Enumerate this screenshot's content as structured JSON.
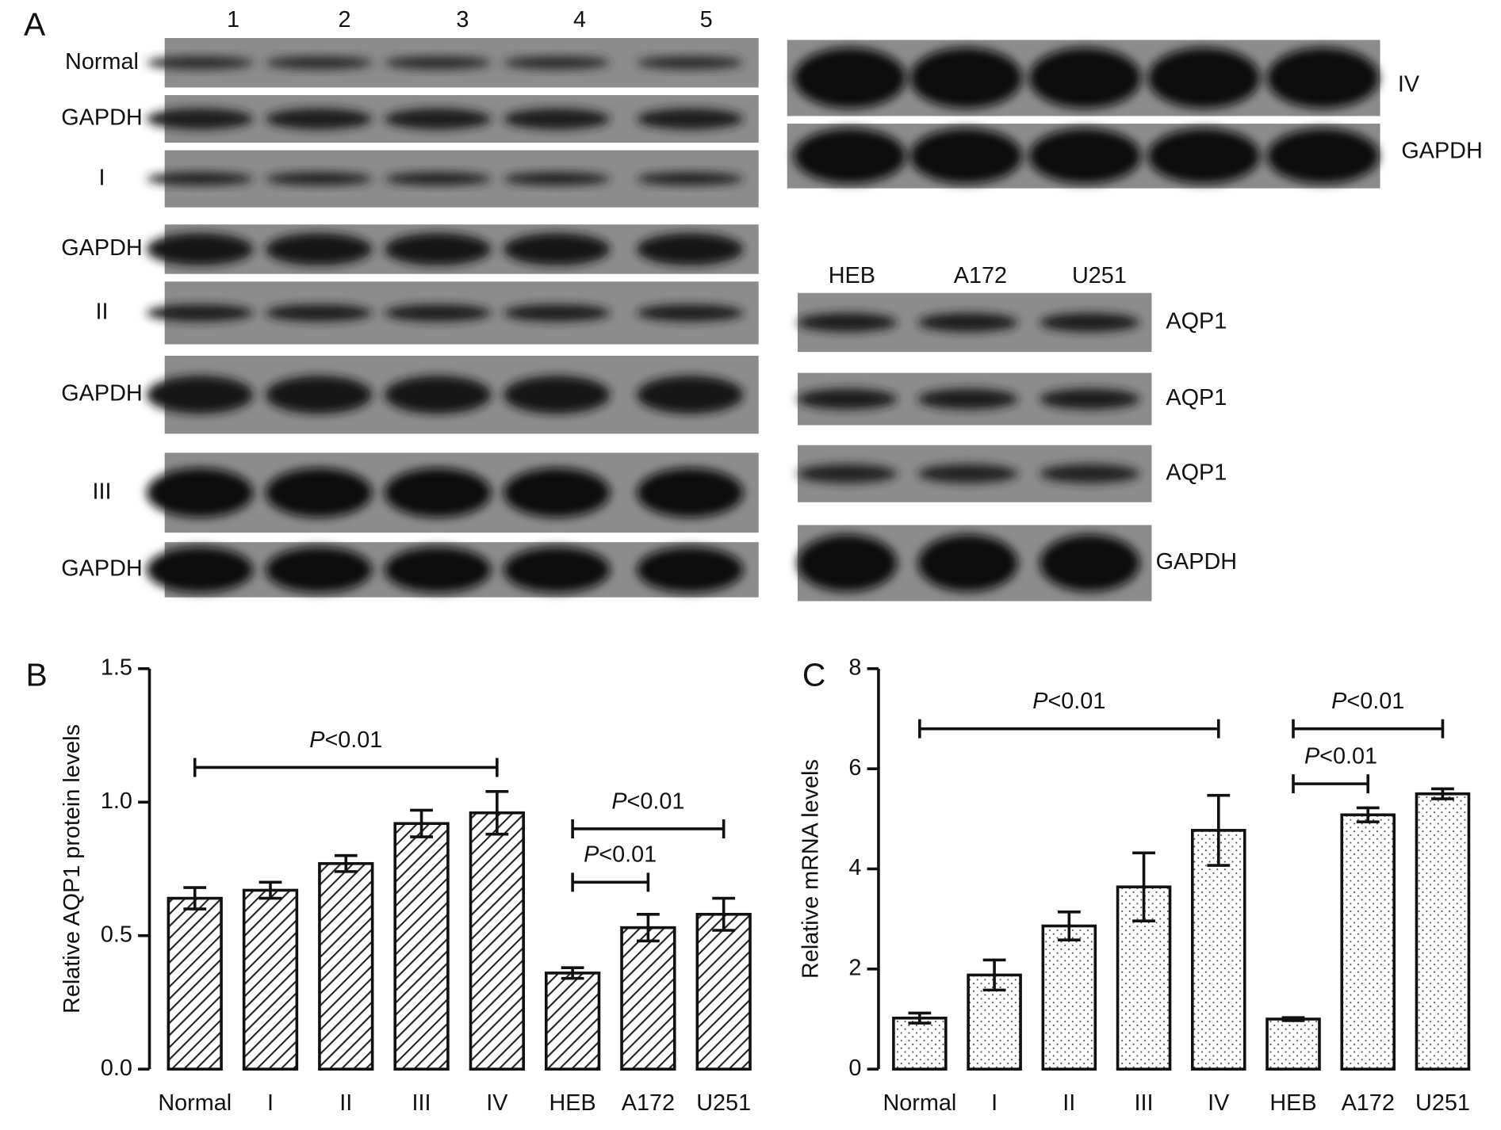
{
  "panel_labels": [
    "A",
    "B",
    "C"
  ],
  "blot_left": {
    "lanes": [
      "1",
      "2",
      "3",
      "4",
      "5"
    ],
    "rows": [
      "Normal",
      "GAPDH",
      "I",
      "GAPDH",
      "II",
      "GAPDH",
      "III",
      "GAPDH"
    ]
  },
  "blot_right_top": {
    "rows": [
      "IV",
      "GAPDH"
    ]
  },
  "blot_right_bottom": {
    "lanes": [
      "HEB",
      "A172",
      "U251"
    ],
    "rows": [
      "AQP1",
      "AQP1",
      "AQP1",
      "GAPDH"
    ]
  },
  "chart_data": [
    {
      "type": "bar",
      "y_label": "Relative AQP1 protein levels",
      "categories": [
        "Normal",
        "I",
        "II",
        "III",
        "IV",
        "HEB",
        "A172",
        "U251"
      ],
      "values": [
        0.64,
        0.67,
        0.77,
        0.92,
        0.96,
        0.36,
        0.53,
        0.58
      ],
      "errors": [
        0.04,
        0.03,
        0.03,
        0.05,
        0.08,
        0.02,
        0.05,
        0.06
      ],
      "ylim": [
        0,
        1.5
      ],
      "yticks": [
        {
          "value": 0,
          "label": "0.0"
        },
        0.5,
        {
          "value": 1,
          "label": "1.0"
        },
        1.5
      ],
      "pattern": "hatch",
      "annotations": [
        "P<0.01",
        "P<0.01",
        "P<0.01"
      ]
    },
    {
      "type": "bar",
      "y_label": "Relative mRNA levels",
      "categories": [
        "Normal",
        "I",
        "II",
        "III",
        "IV",
        "HEB",
        "A172",
        "U251"
      ],
      "values": [
        1.02,
        1.88,
        2.86,
        3.64,
        4.77,
        1.0,
        5.08,
        5.5
      ],
      "errors": [
        0.1,
        0.3,
        0.28,
        0.68,
        0.7,
        0.03,
        0.14,
        0.1
      ],
      "ylim": [
        0,
        8
      ],
      "yticks": [
        0,
        2,
        4,
        6,
        8
      ],
      "pattern": "dots",
      "annotations": [
        "P<0.01",
        "P<0.01",
        "P<0.01"
      ]
    }
  ]
}
